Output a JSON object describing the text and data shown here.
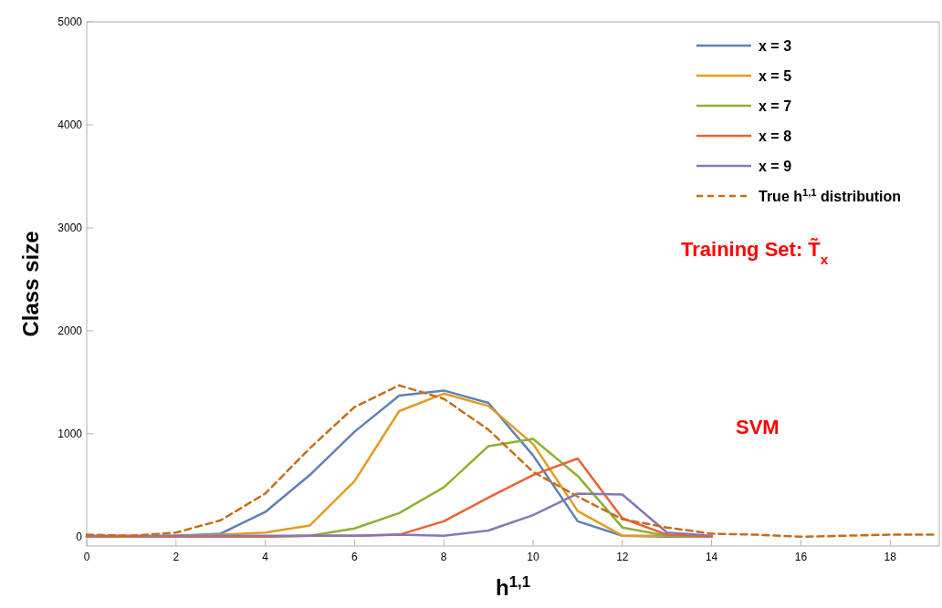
{
  "chart_data": {
    "type": "line",
    "xlabel": "h$^{1,1}$",
    "ylabel": "Class size",
    "xlim": [
      0,
      19.1
    ],
    "ylim": [
      -90,
      5000
    ],
    "xticks": [
      0,
      2,
      4,
      6,
      8,
      10,
      12,
      14,
      16,
      18
    ],
    "yticks": [
      0,
      1000,
      2000,
      3000,
      4000,
      5000
    ],
    "grid": false,
    "legend": "top right",
    "annotations": [
      "Training Set:  T̃$_{x}$",
      "SVM"
    ],
    "series": [
      {
        "name": "x = 3",
        "color": "#5e81b5",
        "x": [
          0,
          1,
          2,
          3,
          4,
          5,
          6,
          7,
          8,
          9,
          10,
          11,
          12,
          13,
          14
        ],
        "values": [
          0,
          0,
          10,
          30,
          240,
          600,
          1020,
          1370,
          1420,
          1300,
          790,
          150,
          10,
          0,
          0
        ]
      },
      {
        "name": "x = 5",
        "color": "#e19c24",
        "x": [
          0,
          1,
          2,
          3,
          4,
          5,
          6,
          7,
          8,
          9,
          10,
          11,
          12,
          13,
          14
        ],
        "values": [
          0,
          0,
          10,
          20,
          40,
          110,
          540,
          1220,
          1390,
          1270,
          900,
          250,
          10,
          10,
          0
        ]
      },
      {
        "name": "x = 7",
        "color": "#8fb032",
        "x": [
          4,
          5,
          6,
          7,
          8,
          9,
          10,
          11,
          12,
          13,
          14
        ],
        "values": [
          0,
          10,
          80,
          230,
          480,
          880,
          950,
          590,
          90,
          10,
          0
        ]
      },
      {
        "name": "x = 8",
        "color": "#eb6235",
        "x": [
          0,
          1,
          2,
          3,
          4,
          5,
          6,
          7,
          8,
          9,
          10,
          11,
          12,
          13,
          14
        ],
        "values": [
          0,
          0,
          0,
          0,
          0,
          10,
          10,
          20,
          150,
          380,
          600,
          760,
          180,
          20,
          0
        ]
      },
      {
        "name": "x = 9",
        "color": "#8778b3",
        "x": [
          0,
          1,
          2,
          3,
          4,
          5,
          6,
          7,
          8,
          9,
          10,
          11,
          12,
          13,
          14
        ],
        "values": [
          10,
          10,
          10,
          10,
          10,
          10,
          10,
          20,
          10,
          60,
          210,
          420,
          410,
          40,
          10
        ]
      },
      {
        "name": "True h$^{1,1}$ distribution",
        "color": "#c56e1a",
        "line_style": "dashed",
        "x": [
          0,
          1,
          2,
          3,
          4,
          5,
          6,
          7,
          8,
          9,
          10,
          11,
          12,
          13,
          14,
          15,
          16,
          17,
          18,
          19
        ],
        "values": [
          20,
          10,
          40,
          160,
          420,
          860,
          1260,
          1470,
          1340,
          1040,
          630,
          390,
          170,
          90,
          30,
          20,
          0,
          10,
          20,
          20
        ]
      }
    ]
  }
}
